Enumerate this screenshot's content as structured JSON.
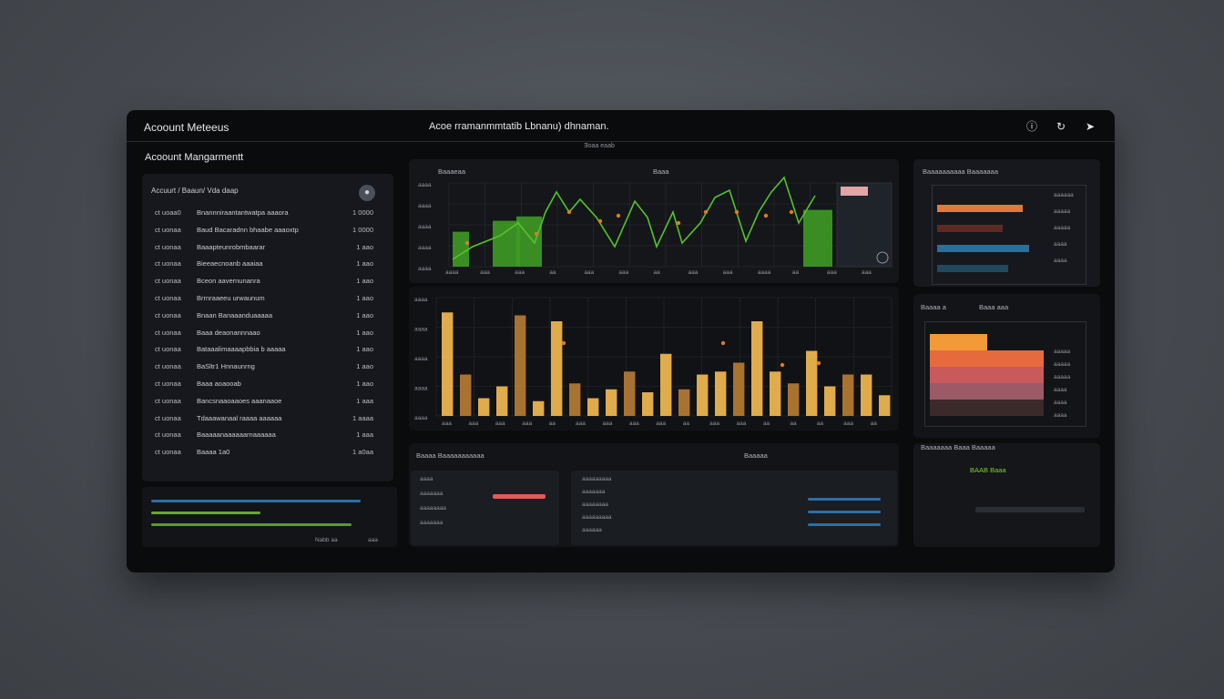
{
  "window": {
    "app_title": "Acoount Meteeus",
    "center_title": "Acoe rramanmmtatib Lbnanu) dhnaman.",
    "center_sub": "Ǝoaa eaab",
    "section_title": "Acoount Mangarmentt"
  },
  "accounts": {
    "header": "Accuurt / Baaun/   Vda daap",
    "rows": [
      {
        "id": "ct uoaa0",
        "name": "Bnannniraantantwatpa aaaora",
        "value": "1 0000"
      },
      {
        "id": "ct uonaa",
        "name": "Baud Bacaradnn bhaabe aaaoxtp",
        "value": "1 0000"
      },
      {
        "id": "ct uonaa",
        "name": "Baaapteunrobmbaarar",
        "value": "1 aao"
      },
      {
        "id": "ct uonaa",
        "name": "Bieeaecnoanb aaaiaa",
        "value": "1 aao"
      },
      {
        "id": "ct uonaa",
        "name": "Bceon aavernunanra",
        "value": "1 aao"
      },
      {
        "id": "ct uonaa",
        "name": "Brrnraaeeu urwaunum",
        "value": "1 aao"
      },
      {
        "id": "ct uonaa",
        "name": "Bnaan Banaaanduaaaaa",
        "value": "1 aao"
      },
      {
        "id": "ct uonaa",
        "name": "Baaa deaonannnaao",
        "value": "1 aao"
      },
      {
        "id": "ct uonaa",
        "name": "Bataaalimaaaapbbia b aaaaa",
        "value": "1 aao"
      },
      {
        "id": "ct uonaa",
        "name": "BaSltr1 Hnnaunrng",
        "value": "1 aao"
      },
      {
        "id": "ct uonaa",
        "name": "Baaa aoaooab",
        "value": "1 aao"
      },
      {
        "id": "ct uonaa",
        "name": "Bancsnaaoaaoes aaanaaoe",
        "value": "1 aaa"
      },
      {
        "id": "ct uonaa",
        "name": "Tdaaawanaal raaaa aaaaaa",
        "value": "1 aaaa"
      },
      {
        "id": "ct uonaa",
        "name": "Baaaaanaaaaaarnaaaaaa",
        "value": "1 aaa"
      },
      {
        "id": "ct uonaa",
        "name": "Baaaa 1a0",
        "value": "1 a0aa"
      }
    ],
    "footer_left": "Nabb aa",
    "footer_right": "aaa"
  },
  "chart_top": {
    "title": "Baaaeaa",
    "title2": "Baaa",
    "y_ticks": [
      "aaaa",
      "aaaa",
      "aaaa",
      "aaaa",
      "aaaa"
    ],
    "x_ticks": [
      "aaaa",
      "aaa",
      "aaa",
      "aa",
      "aaa",
      "aaa",
      "aa",
      "aaa",
      "aaa",
      "aaaa",
      "aa",
      "aaa",
      "aaa"
    ],
    "colors": {
      "line": "#56c22b",
      "bar": "#3e9a25",
      "dot": "#e07a1f"
    }
  },
  "chart_mid": {
    "y_ticks": [
      "aaaa",
      "aaaa",
      "aaaa",
      "aaaa",
      "aaaa"
    ],
    "x_ticks": [
      "aaa",
      "aaa",
      "aaa",
      "aaa",
      "aa",
      "aaa",
      "aaa",
      "aaa",
      "aaa",
      "aa",
      "aaa",
      "aaa",
      "aa",
      "aa",
      "aa",
      "aaa",
      "aa"
    ],
    "bar_values": [
      70,
      28,
      12,
      20,
      68,
      10,
      64,
      22,
      12,
      18,
      30,
      16,
      42,
      18,
      28,
      30,
      36,
      64,
      30,
      22,
      44,
      20,
      28,
      28,
      14
    ],
    "colors": {
      "bar": "#f1b850",
      "bar_dark": "#b57b33",
      "dot": "#e07a1f"
    }
  },
  "bottom_left": {
    "title": "Baaaa   Baaaaaaaaaaa",
    "title_right": "Baaaaa"
  },
  "bottom_cards": {
    "card_a_labels": [
      "aaaa",
      "aaaaaaa",
      "aaaaaaaa",
      "aaaaaaa"
    ],
    "card_b_labels": [
      "aaaaaaaaa",
      "aaaaaaa",
      "aaaaaaaa",
      "aaaaaaaaa",
      "aaaaaa"
    ]
  },
  "right_top": {
    "title": "Baaaaaaaaaa   Baaaaaaa",
    "labels": [
      "aaaaaa",
      "aaaaa",
      "aaaaa",
      "aaaa",
      "aaaa"
    ],
    "bars": [
      {
        "color": "#e2793a",
        "value": 0.72
      },
      {
        "color": "#5d2a24",
        "value": 0.55
      },
      {
        "color": "#2c6e98",
        "value": 0.78
      },
      {
        "color": "#22485e",
        "value": 0.6
      }
    ]
  },
  "right_mid": {
    "title": "Baaaa   a",
    "title2": "Baaa aaa",
    "labels": [
      "aaaaa",
      "aaaaa",
      "aaaaa",
      "aaaa",
      "aaaa",
      "aaaa"
    ],
    "bands": [
      {
        "color": "#f29a38",
        "value": 0.48
      },
      {
        "color": "#e66b3c",
        "value": 0.95
      },
      {
        "color": "#c85a5b",
        "value": 0.95
      },
      {
        "color": "#9c5a66",
        "value": 0.95
      },
      {
        "color": "#3a2a2a",
        "value": 0.95
      }
    ]
  },
  "right_bot": {
    "title": "Baaaaaaa  Baaa Baaaaa",
    "status": "BAAB Baaa"
  }
}
